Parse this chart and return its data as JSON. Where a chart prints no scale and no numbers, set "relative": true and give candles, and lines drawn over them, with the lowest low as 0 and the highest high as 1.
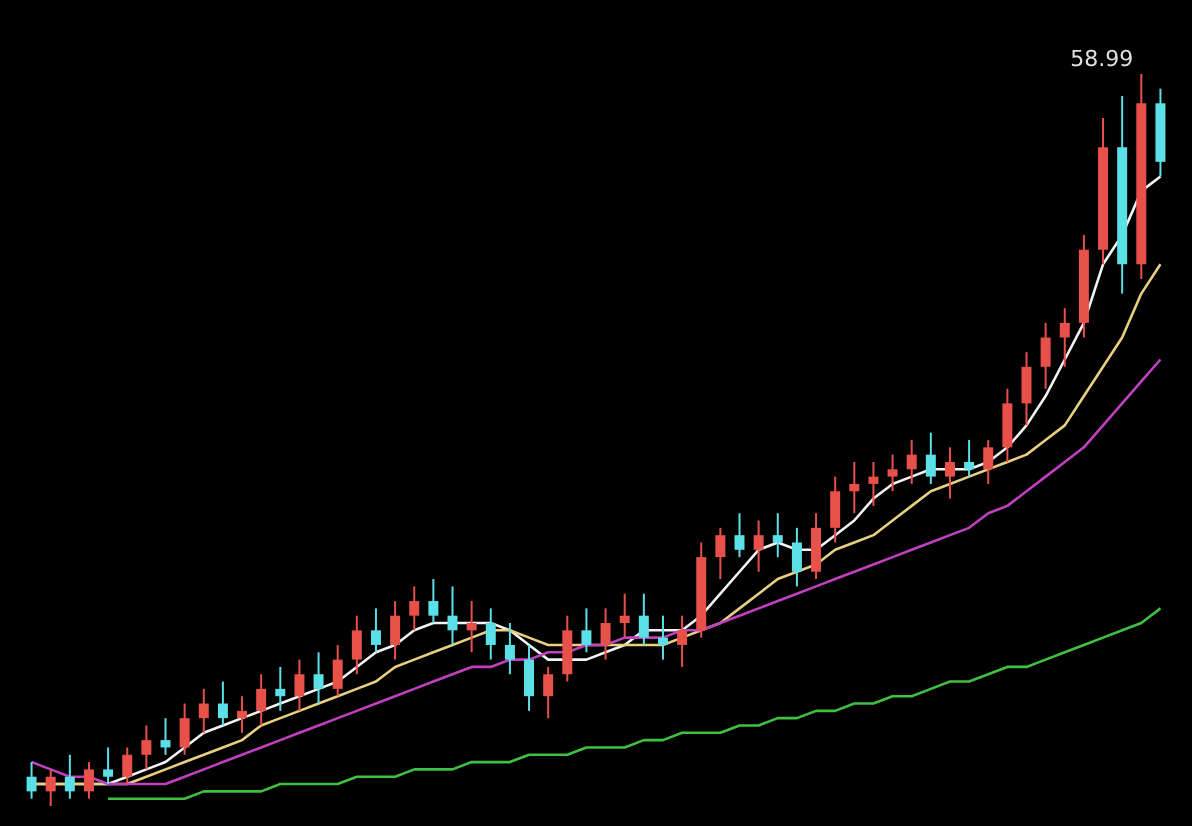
{
  "chart_data": {
    "type": "candlestick",
    "relative": true,
    "categories": [
      null,
      null,
      null,
      null,
      null,
      null,
      null,
      null,
      null,
      null,
      null,
      null,
      null,
      null,
      null,
      null,
      null,
      null,
      null,
      null,
      null,
      null,
      null,
      null,
      null,
      null,
      null,
      null,
      null,
      null,
      null,
      null,
      null,
      null,
      null,
      null,
      null,
      null,
      null,
      null,
      null,
      null,
      null,
      null,
      null,
      null,
      null,
      null,
      null,
      null,
      null,
      null,
      null,
      null,
      null,
      null,
      null,
      null,
      null,
      null
    ],
    "ohlc": [
      [
        0.04,
        0.06,
        0.01,
        0.02
      ],
      [
        0.02,
        0.05,
        0.0,
        0.04
      ],
      [
        0.04,
        0.07,
        0.01,
        0.02
      ],
      [
        0.02,
        0.06,
        0.01,
        0.05
      ],
      [
        0.05,
        0.08,
        0.03,
        0.04
      ],
      [
        0.04,
        0.08,
        0.03,
        0.07
      ],
      [
        0.07,
        0.11,
        0.05,
        0.09
      ],
      [
        0.09,
        0.12,
        0.07,
        0.08
      ],
      [
        0.08,
        0.14,
        0.07,
        0.12
      ],
      [
        0.12,
        0.16,
        0.1,
        0.14
      ],
      [
        0.14,
        0.17,
        0.11,
        0.12
      ],
      [
        0.12,
        0.15,
        0.1,
        0.13
      ],
      [
        0.13,
        0.18,
        0.11,
        0.16
      ],
      [
        0.16,
        0.19,
        0.13,
        0.15
      ],
      [
        0.15,
        0.2,
        0.13,
        0.18
      ],
      [
        0.18,
        0.21,
        0.14,
        0.16
      ],
      [
        0.16,
        0.22,
        0.15,
        0.2
      ],
      [
        0.2,
        0.26,
        0.18,
        0.24
      ],
      [
        0.24,
        0.27,
        0.21,
        0.22
      ],
      [
        0.22,
        0.28,
        0.2,
        0.26
      ],
      [
        0.26,
        0.3,
        0.24,
        0.28
      ],
      [
        0.28,
        0.31,
        0.25,
        0.26
      ],
      [
        0.26,
        0.3,
        0.22,
        0.24
      ],
      [
        0.24,
        0.28,
        0.21,
        0.25
      ],
      [
        0.25,
        0.27,
        0.2,
        0.22
      ],
      [
        0.22,
        0.25,
        0.18,
        0.2
      ],
      [
        0.2,
        0.22,
        0.13,
        0.15
      ],
      [
        0.15,
        0.19,
        0.12,
        0.18
      ],
      [
        0.18,
        0.26,
        0.17,
        0.24
      ],
      [
        0.24,
        0.27,
        0.21,
        0.22
      ],
      [
        0.22,
        0.27,
        0.2,
        0.25
      ],
      [
        0.25,
        0.29,
        0.23,
        0.26
      ],
      [
        0.26,
        0.29,
        0.22,
        0.23
      ],
      [
        0.23,
        0.26,
        0.2,
        0.22
      ],
      [
        0.22,
        0.26,
        0.19,
        0.24
      ],
      [
        0.24,
        0.36,
        0.23,
        0.34
      ],
      [
        0.34,
        0.38,
        0.31,
        0.37
      ],
      [
        0.37,
        0.4,
        0.34,
        0.35
      ],
      [
        0.35,
        0.39,
        0.32,
        0.37
      ],
      [
        0.37,
        0.4,
        0.34,
        0.36
      ],
      [
        0.36,
        0.38,
        0.3,
        0.32
      ],
      [
        0.32,
        0.4,
        0.31,
        0.38
      ],
      [
        0.38,
        0.45,
        0.36,
        0.43
      ],
      [
        0.43,
        0.47,
        0.4,
        0.44
      ],
      [
        0.44,
        0.47,
        0.41,
        0.45
      ],
      [
        0.45,
        0.48,
        0.43,
        0.46
      ],
      [
        0.46,
        0.5,
        0.44,
        0.48
      ],
      [
        0.48,
        0.51,
        0.44,
        0.45
      ],
      [
        0.45,
        0.49,
        0.42,
        0.47
      ],
      [
        0.47,
        0.5,
        0.45,
        0.46
      ],
      [
        0.46,
        0.5,
        0.44,
        0.49
      ],
      [
        0.49,
        0.57,
        0.47,
        0.55
      ],
      [
        0.55,
        0.62,
        0.52,
        0.6
      ],
      [
        0.6,
        0.66,
        0.57,
        0.64
      ],
      [
        0.64,
        0.68,
        0.6,
        0.66
      ],
      [
        0.66,
        0.78,
        0.64,
        0.76
      ],
      [
        0.76,
        0.94,
        0.74,
        0.9
      ],
      [
        0.9,
        0.97,
        0.7,
        0.74
      ],
      [
        0.74,
        1.0,
        0.72,
        0.96
      ],
      [
        0.96,
        0.98,
        0.86,
        0.88
      ]
    ],
    "colors": [
      "#5ce0e8",
      "#e8504a",
      "#5ce0e8",
      "#e8504a",
      "#5ce0e8",
      "#e8504a",
      "#e8504a",
      "#5ce0e8",
      "#e8504a",
      "#e8504a",
      "#5ce0e8",
      "#e8504a",
      "#e8504a",
      "#5ce0e8",
      "#e8504a",
      "#5ce0e8",
      "#e8504a",
      "#e8504a",
      "#5ce0e8",
      "#e8504a",
      "#e8504a",
      "#5ce0e8",
      "#5ce0e8",
      "#e8504a",
      "#5ce0e8",
      "#5ce0e8",
      "#5ce0e8",
      "#e8504a",
      "#e8504a",
      "#5ce0e8",
      "#e8504a",
      "#e8504a",
      "#5ce0e8",
      "#5ce0e8",
      "#e8504a",
      "#e8504a",
      "#e8504a",
      "#5ce0e8",
      "#e8504a",
      "#5ce0e8",
      "#5ce0e8",
      "#e8504a",
      "#e8504a",
      "#e8504a",
      "#e8504a",
      "#e8504a",
      "#e8504a",
      "#5ce0e8",
      "#e8504a",
      "#5ce0e8",
      "#e8504a",
      "#e8504a",
      "#e8504a",
      "#e8504a",
      "#e8504a",
      "#e8504a",
      "#e8504a",
      "#5ce0e8",
      "#e8504a",
      "#5ce0e8"
    ],
    "series": [
      {
        "type": "line",
        "color": "#f2f2f2",
        "values": [
          0.03,
          0.03,
          0.03,
          0.03,
          0.03,
          0.04,
          0.05,
          0.06,
          0.08,
          0.1,
          0.11,
          0.12,
          0.13,
          0.14,
          0.15,
          0.16,
          0.17,
          0.19,
          0.21,
          0.22,
          0.24,
          0.25,
          0.25,
          0.25,
          0.25,
          0.24,
          0.22,
          0.2,
          0.2,
          0.2,
          0.21,
          0.22,
          0.24,
          0.24,
          0.24,
          0.26,
          0.29,
          0.32,
          0.35,
          0.36,
          0.35,
          0.35,
          0.37,
          0.39,
          0.42,
          0.44,
          0.45,
          0.46,
          0.46,
          0.46,
          0.47,
          0.49,
          0.52,
          0.56,
          0.61,
          0.66,
          0.74,
          0.78,
          0.84,
          0.86
        ]
      },
      {
        "type": "line",
        "color": "#e8d080",
        "values": [
          0.03,
          0.03,
          0.03,
          0.03,
          0.03,
          0.03,
          0.04,
          0.05,
          0.06,
          0.07,
          0.08,
          0.09,
          0.11,
          0.12,
          0.13,
          0.14,
          0.15,
          0.16,
          0.17,
          0.19,
          0.2,
          0.21,
          0.22,
          0.23,
          0.24,
          0.24,
          0.23,
          0.22,
          0.22,
          0.22,
          0.22,
          0.22,
          0.22,
          0.22,
          0.23,
          0.24,
          0.25,
          0.27,
          0.29,
          0.31,
          0.32,
          0.33,
          0.35,
          0.36,
          0.37,
          0.39,
          0.41,
          0.43,
          0.44,
          0.45,
          0.46,
          0.47,
          0.48,
          0.5,
          0.52,
          0.56,
          0.6,
          0.64,
          0.7,
          0.74
        ]
      },
      {
        "type": "line",
        "color": "#c040c0",
        "values": [
          0.06,
          0.05,
          0.04,
          0.04,
          0.03,
          0.03,
          0.03,
          0.03,
          0.04,
          0.05,
          0.06,
          0.07,
          0.08,
          0.09,
          0.1,
          0.11,
          0.12,
          0.13,
          0.14,
          0.15,
          0.16,
          0.17,
          0.18,
          0.19,
          0.19,
          0.2,
          0.2,
          0.21,
          0.21,
          0.22,
          0.22,
          0.23,
          0.23,
          0.23,
          0.24,
          0.24,
          0.25,
          0.26,
          0.27,
          0.28,
          0.29,
          0.3,
          0.31,
          0.32,
          0.33,
          0.34,
          0.35,
          0.36,
          0.37,
          0.38,
          0.4,
          0.41,
          0.43,
          0.45,
          0.47,
          0.49,
          0.52,
          0.55,
          0.58,
          0.61
        ]
      },
      {
        "type": "line",
        "color": "#40c040",
        "values": [
          null,
          null,
          null,
          null,
          0.01,
          0.01,
          0.01,
          0.01,
          0.01,
          0.02,
          0.02,
          0.02,
          0.02,
          0.03,
          0.03,
          0.03,
          0.03,
          0.04,
          0.04,
          0.04,
          0.05,
          0.05,
          0.05,
          0.06,
          0.06,
          0.06,
          0.07,
          0.07,
          0.07,
          0.08,
          0.08,
          0.08,
          0.09,
          0.09,
          0.1,
          0.1,
          0.1,
          0.11,
          0.11,
          0.12,
          0.12,
          0.13,
          0.13,
          0.14,
          0.14,
          0.15,
          0.15,
          0.16,
          0.17,
          0.17,
          0.18,
          0.19,
          0.19,
          0.2,
          0.21,
          0.22,
          0.23,
          0.24,
          0.25,
          0.27
        ]
      }
    ],
    "annotations": [
      "58.99"
    ]
  }
}
